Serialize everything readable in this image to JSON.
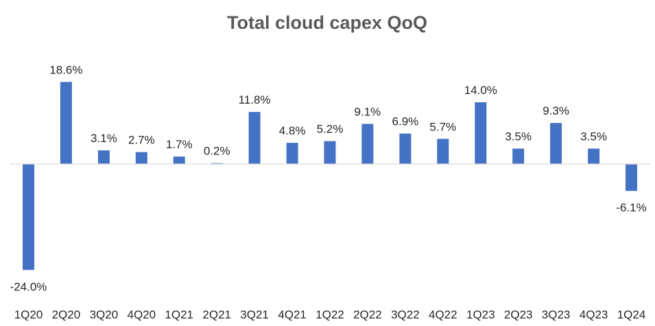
{
  "chart_data": {
    "type": "bar",
    "title": "Total cloud capex QoQ",
    "xlabel": "",
    "ylabel": "",
    "categories": [
      "1Q20",
      "2Q20",
      "3Q20",
      "4Q20",
      "1Q21",
      "2Q21",
      "3Q21",
      "4Q21",
      "1Q22",
      "2Q22",
      "3Q22",
      "4Q22",
      "1Q23",
      "2Q23",
      "3Q23",
      "4Q23",
      "1Q24"
    ],
    "values": [
      -24.0,
      18.6,
      3.1,
      2.7,
      1.7,
      0.2,
      11.8,
      4.8,
      5.2,
      9.1,
      6.9,
      5.7,
      14.0,
      3.5,
      9.3,
      3.5,
      -6.1
    ],
    "data_labels": [
      "-24.0%",
      "18.6%",
      "3.1%",
      "2.7%",
      "1.7%",
      "0.2%",
      "11.8%",
      "4.8%",
      "5.2%",
      "9.1%",
      "6.9%",
      "5.7%",
      "14.0%",
      "3.5%",
      "9.3%",
      "3.5%",
      "-6.1%"
    ],
    "unit": "%",
    "ylim": [
      -30,
      20
    ],
    "grid": false,
    "legend": "none",
    "bar_color": "#4472C4",
    "axis_color": "#D9D9D9"
  }
}
